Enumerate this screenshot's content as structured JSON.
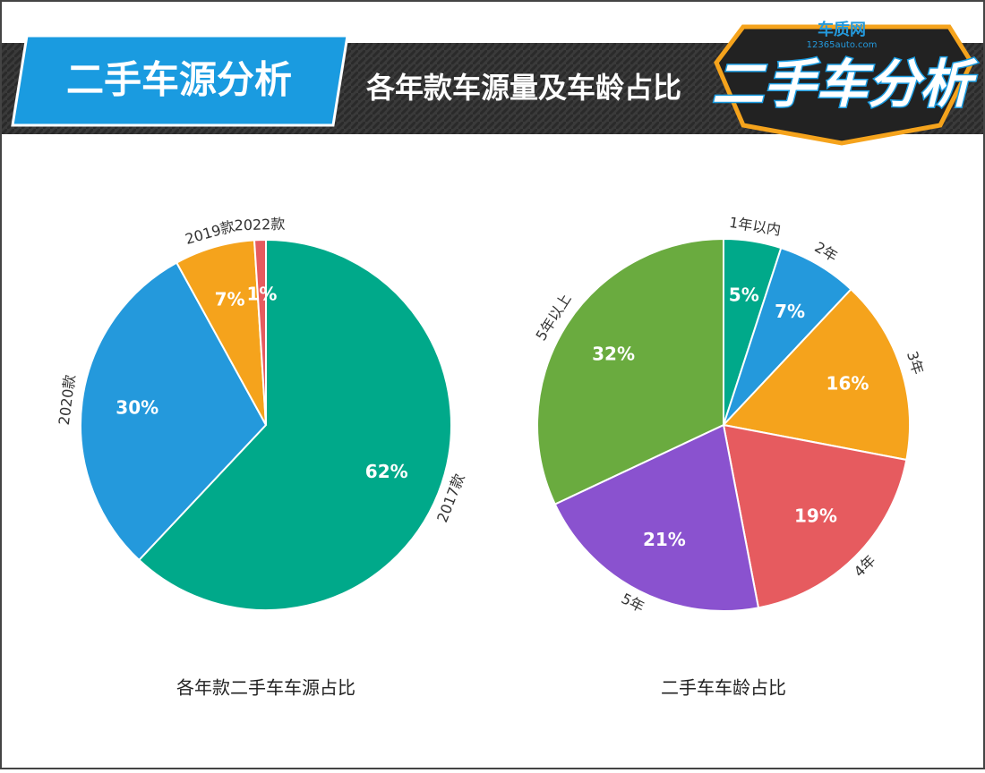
{
  "header": {
    "tag": "二手车源分析",
    "subtitle": "各年款车源量及车龄占比",
    "logo": "二手车分析",
    "logo_brand": "车质网",
    "logo_site": "12365auto.com"
  },
  "chart_data": [
    {
      "type": "pie",
      "title": "各年款二手车车源占比",
      "categories": [
        "2017款",
        "2020款",
        "2019款",
        "2022款"
      ],
      "values": [
        62,
        30,
        7,
        1
      ],
      "value_labels": [
        "62%",
        "30%",
        "7%",
        "1%"
      ],
      "colors": [
        "#00a98a",
        "#2499dc",
        "#f5a31c",
        "#e65b5f"
      ]
    },
    {
      "type": "pie",
      "title": "二手车车龄占比",
      "categories": [
        "1年以内",
        "2年",
        "3年",
        "4年",
        "5年",
        "5年以上"
      ],
      "values": [
        5,
        7,
        16,
        19,
        21,
        32
      ],
      "value_labels": [
        "5%",
        "7%",
        "16%",
        "19%",
        "21%",
        "32%"
      ],
      "colors": [
        "#00a98a",
        "#2499dc",
        "#f5a31c",
        "#e65b5f",
        "#8a52cf",
        "#6aab3f"
      ]
    }
  ]
}
